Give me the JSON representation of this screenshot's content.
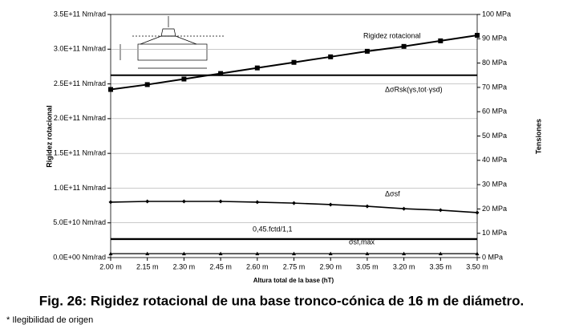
{
  "chart_data": {
    "type": "line",
    "y_label": "Rigidez rotacional",
    "y2_label": "Tensiones",
    "x_label": "Altura total de la base (hT)",
    "caption": "Fig. 26: Rigidez rotacional de una base tronco-cónica de 16 m de diámetro.",
    "footnote": "* Ilegibilidad de origen",
    "x": [
      2.0,
      2.15,
      2.3,
      2.45,
      2.6,
      2.75,
      2.9,
      3.05,
      3.2,
      3.35,
      3.5
    ],
    "xlim": [
      2.0,
      3.5
    ],
    "xticks": [
      {
        "value": 2.0,
        "label": "2.00 m"
      },
      {
        "value": 2.15,
        "label": "2.15 m"
      },
      {
        "value": 2.3,
        "label": "2.30 m"
      },
      {
        "value": 2.45,
        "label": "2.45 m"
      },
      {
        "value": 2.6,
        "label": "2.60 m"
      },
      {
        "value": 2.75,
        "label": "2.75 m"
      },
      {
        "value": 2.9,
        "label": "2.90 m"
      },
      {
        "value": 3.05,
        "label": "3.05 m"
      },
      {
        "value": 3.2,
        "label": "3.20 m"
      },
      {
        "value": 3.35,
        "label": "3.35 m"
      },
      {
        "value": 3.5,
        "label": "3.50 m"
      }
    ],
    "ylim": [
      0,
      350000000000
    ],
    "yticks": [
      {
        "value": 0,
        "label": "0.0E+00 Nm/rad"
      },
      {
        "value": 50000000000,
        "label": "5.0E+10 Nm/rad"
      },
      {
        "value": 100000000000,
        "label": "1.0E+11 Nm/rad"
      },
      {
        "value": 150000000000,
        "label": "1.5E+11 Nm/rad"
      },
      {
        "value": 200000000000,
        "label": "2.0E+11 Nm/rad"
      },
      {
        "value": 250000000000,
        "label": "2.5E+11 Nm/rad"
      },
      {
        "value": 300000000000,
        "label": "3.0E+11 Nm/rad"
      },
      {
        "value": 350000000000,
        "label": "3.5E+11 Nm/rad"
      }
    ],
    "y2lim": [
      0,
      100
    ],
    "y2ticks": [
      {
        "value": 0,
        "label": "0 MPa"
      },
      {
        "value": 10,
        "label": "10 MPa"
      },
      {
        "value": 20,
        "label": "20 MPa"
      },
      {
        "value": 30,
        "label": "30 MPa"
      },
      {
        "value": 40,
        "label": "40 MPa"
      },
      {
        "value": 50,
        "label": "50 MPa"
      },
      {
        "value": 60,
        "label": "60 MPa"
      },
      {
        "value": 70,
        "label": "70 MPa"
      },
      {
        "value": 80,
        "label": "80 MPa"
      },
      {
        "value": 90,
        "label": "90 MPa"
      },
      {
        "value": 100,
        "label": "100 MPa"
      }
    ],
    "grid": true,
    "series": [
      {
        "name": "Rigidez rotacional",
        "color": "#000000",
        "marker": "square",
        "values": [
          242000000000,
          249000000000,
          257000000000,
          265000000000,
          273000000000,
          281000000000,
          289000000000,
          297000000000,
          304000000000,
          312000000000,
          320000000000
        ]
      },
      {
        "name": "ΔσRsk(γs,tot·γsd)",
        "color": "#000000",
        "axis": "y2",
        "values": [
          75,
          75,
          75,
          75,
          75,
          75,
          75,
          75,
          75,
          75,
          75
        ]
      },
      {
        "name": "Δσsf",
        "color": "#000000",
        "axis": "y2",
        "marker": "diamond",
        "values": [
          22.8,
          23.1,
          23.1,
          23.1,
          22.8,
          22.4,
          21.8,
          21.1,
          20.1,
          19.5,
          18.5
        ]
      },
      {
        "name": "0,45.fctd/1,1",
        "color": "#000000",
        "axis": "y2",
        "values": [
          7.6,
          7.6,
          7.6,
          7.6,
          7.6,
          7.6,
          7.6,
          7.6,
          7.6,
          7.6,
          7.6
        ]
      },
      {
        "name": "σsf,max",
        "color": "#000000",
        "axis": "y2",
        "marker": "triangle",
        "values": [
          1.6,
          1.6,
          1.6,
          1.6,
          1.6,
          1.6,
          1.6,
          1.6,
          1.6,
          1.6,
          1.6
        ]
      }
    ]
  }
}
